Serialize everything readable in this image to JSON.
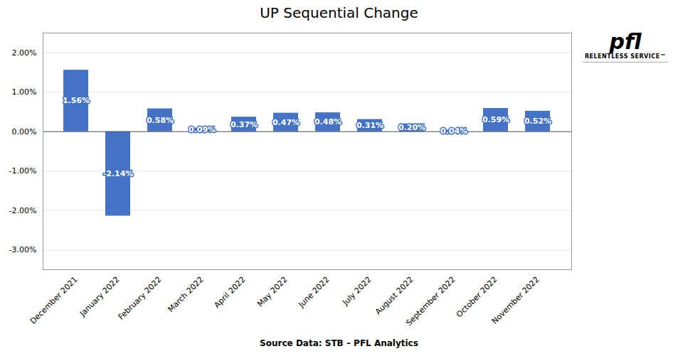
{
  "chart_data": {
    "type": "bar",
    "title": "UP Sequential Change",
    "categories": [
      "December 2021",
      "January 2022",
      "February 2022",
      "March 2022",
      "April 2022",
      "May 2022",
      "June 2022",
      "July 2022",
      "August 2022",
      "September 2022",
      "October 2022",
      "November 2022"
    ],
    "values": [
      1.56,
      -2.14,
      0.58,
      0.09,
      0.37,
      0.47,
      0.48,
      0.31,
      0.2,
      0.04,
      0.59,
      0.52
    ],
    "value_labels": [
      "1.56%",
      "-2.14%",
      "0.58%",
      "0.09%",
      "0.37%",
      "0.47%",
      "0.48%",
      "0.31%",
      "0.20%",
      "0.04%",
      "0.59%",
      "0.52%"
    ],
    "color": "#4472C4",
    "ylim": [
      -3.5,
      2.5
    ],
    "yticks": [
      {
        "value": -3.0,
        "label": "-3.00%"
      },
      {
        "value": -2.0,
        "label": "-2.00%"
      },
      {
        "value": -1.0,
        "label": "-1.00%"
      },
      {
        "value": 0.0,
        "label": "0.00%"
      },
      {
        "value": 1.0,
        "label": "1.00%"
      },
      {
        "value": 2.0,
        "label": "2.00%"
      }
    ],
    "grid": true,
    "data_labels": true,
    "annotations": [
      "Source Data: STB – PFL Analytics",
      "pfl",
      "RELENTLESS SERVICE™"
    ]
  }
}
